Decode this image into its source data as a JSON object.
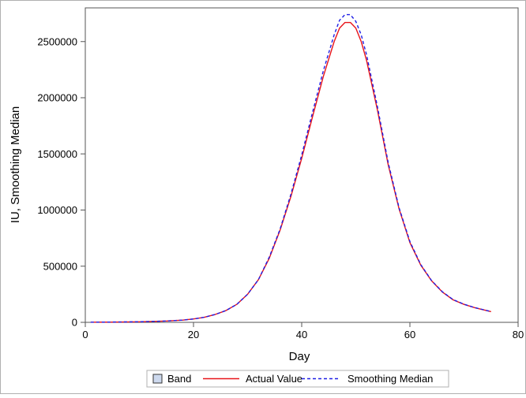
{
  "chart_data": {
    "type": "line",
    "xlabel": "Day",
    "ylabel": "IU, Smoothing Median",
    "xlim": [
      0,
      80
    ],
    "ylim": [
      0,
      2800000
    ],
    "xticks": [
      0,
      20,
      40,
      60,
      80
    ],
    "yticks": [
      0,
      500000,
      1000000,
      1500000,
      2000000,
      2500000
    ],
    "xtick_labels": [
      "0",
      "20",
      "40",
      "60",
      "80"
    ],
    "ytick_labels": [
      "0",
      "500000",
      "1000000",
      "1500000",
      "2000000",
      "2500000"
    ],
    "grid": false,
    "legend": {
      "position": "bottom",
      "items": [
        {
          "label": "Band",
          "kind": "swatch",
          "color": "#cdd9ee"
        },
        {
          "label": "Actual Value",
          "kind": "solid",
          "color": "#e8141a"
        },
        {
          "label": "Smoothing Median",
          "kind": "dashed",
          "color": "#1f1fe6"
        }
      ]
    },
    "series": [
      {
        "name": "Actual Value",
        "style": "solid",
        "color": "#e8141a",
        "x": [
          1,
          5,
          10,
          15,
          18,
          20,
          22,
          24,
          26,
          28,
          30,
          32,
          34,
          36,
          38,
          40,
          42,
          44,
          46,
          47,
          48,
          49,
          50,
          51,
          52,
          54,
          56,
          58,
          60,
          62,
          64,
          66,
          68,
          70,
          72,
          75
        ],
        "y": [
          1000,
          2500,
          5000,
          12000,
          20000,
          30000,
          45000,
          70000,
          105000,
          160000,
          250000,
          380000,
          570000,
          820000,
          1120000,
          1460000,
          1830000,
          2190000,
          2500000,
          2620000,
          2670000,
          2670000,
          2620000,
          2500000,
          2330000,
          1890000,
          1400000,
          1010000,
          710000,
          510000,
          370000,
          270000,
          200000,
          160000,
          130000,
          95000
        ]
      },
      {
        "name": "Smoothing Median",
        "style": "dashed",
        "color": "#1f1fe6",
        "x": [
          1,
          5,
          10,
          15,
          18,
          20,
          22,
          24,
          26,
          28,
          30,
          32,
          34,
          36,
          38,
          40,
          42,
          44,
          46,
          47,
          48,
          49,
          50,
          51,
          52,
          54,
          56,
          58,
          60,
          62,
          64,
          66,
          68,
          70,
          72,
          75
        ],
        "y": [
          1000,
          2500,
          5000,
          12000,
          20000,
          30000,
          45000,
          70000,
          105000,
          160000,
          250000,
          380000,
          580000,
          830000,
          1140000,
          1490000,
          1870000,
          2240000,
          2560000,
          2690000,
          2740000,
          2740000,
          2680000,
          2560000,
          2380000,
          1920000,
          1420000,
          1020000,
          720000,
          515000,
          372000,
          272000,
          202000,
          161000,
          131000,
          96000
        ]
      }
    ]
  }
}
